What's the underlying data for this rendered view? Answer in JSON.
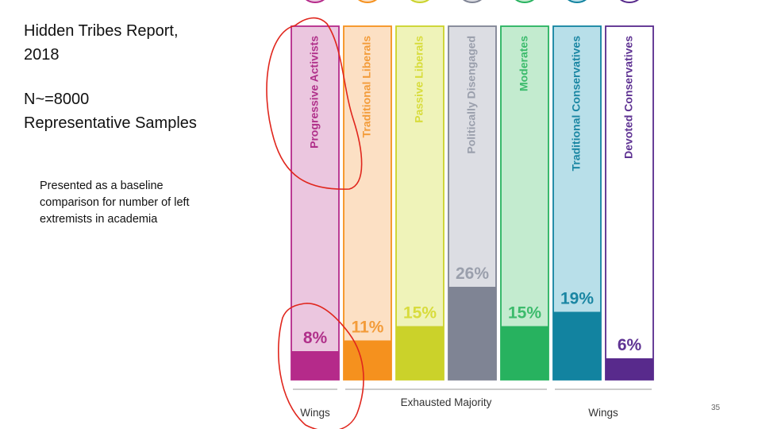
{
  "slide": {
    "title": "Hidden Tribes Report,\n2018",
    "subtitle": "N~=8000\nRepresentative Samples",
    "note": "Presented as a baseline comparison for number of left extremists in academia",
    "page_number": "35"
  },
  "chart_data": {
    "type": "bar",
    "title": "",
    "xlabel": "",
    "ylabel": "",
    "ylim": [
      0,
      100
    ],
    "categories": [
      "Progressive Activists",
      "Traditional Liberals",
      "Passive Liberals",
      "Politically Disengaged",
      "Moderates",
      "Traditional Conservatives",
      "Devoted Conservatives"
    ],
    "values": [
      8,
      11,
      15,
      26,
      15,
      19,
      6
    ],
    "value_labels": [
      "8%",
      "11%",
      "15%",
      "26%",
      "15%",
      "19%",
      "6%"
    ],
    "colors": {
      "fill": [
        "#b52a8a",
        "#f5911e",
        "#cbd22a",
        "#7f8494",
        "#27b25f",
        "#1283a0",
        "#582a8c"
      ],
      "background": [
        "#ebc6df",
        "#fce0c4",
        "#eff3b9",
        "#dcdde3",
        "#c3ebcf",
        "#b8dfe9",
        "#ffffff"
      ],
      "label": [
        "#b0308a",
        "#f39c3a",
        "#d8dc3c",
        "#9a9fac",
        "#3cbb6c",
        "#1a86a3",
        "#5f3393"
      ],
      "annotation_circle": "#e0261d"
    },
    "groups": [
      {
        "label": "Wings",
        "bars": [
          0
        ]
      },
      {
        "label": "Exhausted Majority",
        "bars": [
          1,
          2,
          3,
          4
        ]
      },
      {
        "label": "Wings",
        "bars": [
          5,
          6
        ]
      }
    ],
    "annotations": [
      {
        "type": "hand-drawn circle",
        "around": "Progressive Activists label"
      },
      {
        "type": "hand-drawn circle",
        "around": "8% value"
      }
    ]
  }
}
